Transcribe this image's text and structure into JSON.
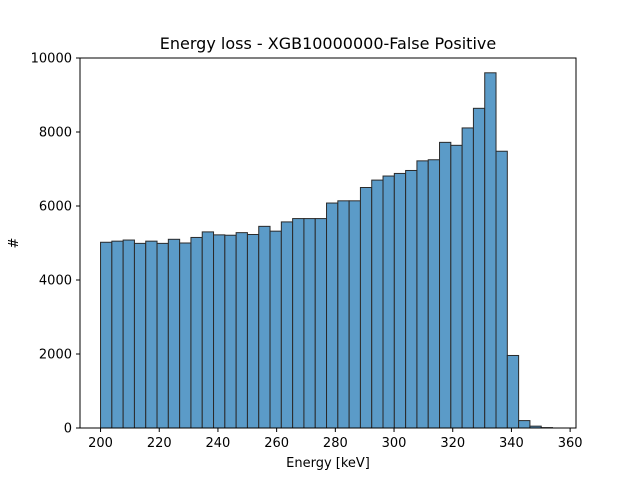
{
  "colors": {
    "bar_fill": "#5b9bc8",
    "bar_edge": "#2a2a2a",
    "axis": "#000000",
    "background": "#ffffff"
  },
  "chart_data": {
    "type": "bar",
    "title": "Energy loss - XGB10000000-False Positive",
    "xlabel": "Energy [keV]",
    "ylabel": "#",
    "xlim": [
      193,
      362
    ],
    "ylim": [
      0,
      10000
    ],
    "grid": false,
    "x_ticks": [
      200,
      220,
      240,
      260,
      280,
      300,
      320,
      340,
      360
    ],
    "y_ticks": [
      0,
      2000,
      4000,
      6000,
      8000,
      10000
    ],
    "bin_start": 200,
    "bin_width": 3.85,
    "values": [
      5020,
      5050,
      5080,
      4990,
      5050,
      4990,
      5100,
      5000,
      5150,
      5300,
      5220,
      5210,
      5280,
      5230,
      5450,
      5320,
      5570,
      5660,
      5660,
      5660,
      6080,
      6140,
      6140,
      6500,
      6700,
      6810,
      6880,
      6960,
      7220,
      7250,
      7720,
      7640,
      8110,
      8640,
      9600,
      7480,
      1960,
      200,
      50,
      10
    ]
  }
}
